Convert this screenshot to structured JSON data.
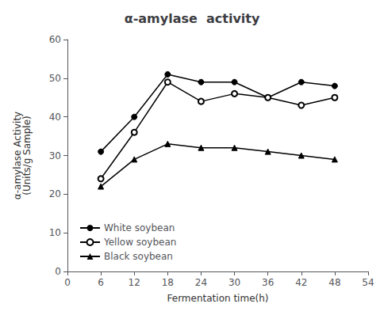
{
  "chart_data": {
    "type": "line",
    "title": "α-amylase  activity",
    "xlabel": "Fermentation time(h)",
    "ylabel": "α-amylase Activity\n(Units/g Sample)",
    "x": [
      6,
      12,
      18,
      24,
      30,
      36,
      42,
      48
    ],
    "series": [
      {
        "name": "White soybean",
        "color": "#000000",
        "marker": "circle",
        "values": [
          31,
          40,
          51,
          49,
          49,
          45,
          49,
          48
        ]
      },
      {
        "name": "Yellow soybean",
        "color": "#000000",
        "marker": "open_circle",
        "values": [
          24,
          36,
          49,
          44,
          46,
          45,
          43,
          45
        ]
      },
      {
        "name": "Black soybean",
        "color": "#000000",
        "marker": "triangle",
        "values": [
          22,
          29,
          33,
          32,
          32,
          31,
          30,
          29
        ]
      }
    ],
    "xlim": [
      0,
      54
    ],
    "ylim": [
      0,
      60
    ],
    "xticks": [
      0,
      6,
      12,
      18,
      24,
      30,
      36,
      42,
      48,
      54
    ],
    "yticks": [
      0,
      10,
      20,
      30,
      40,
      50,
      60
    ],
    "legend": "lower left",
    "grid": false
  }
}
